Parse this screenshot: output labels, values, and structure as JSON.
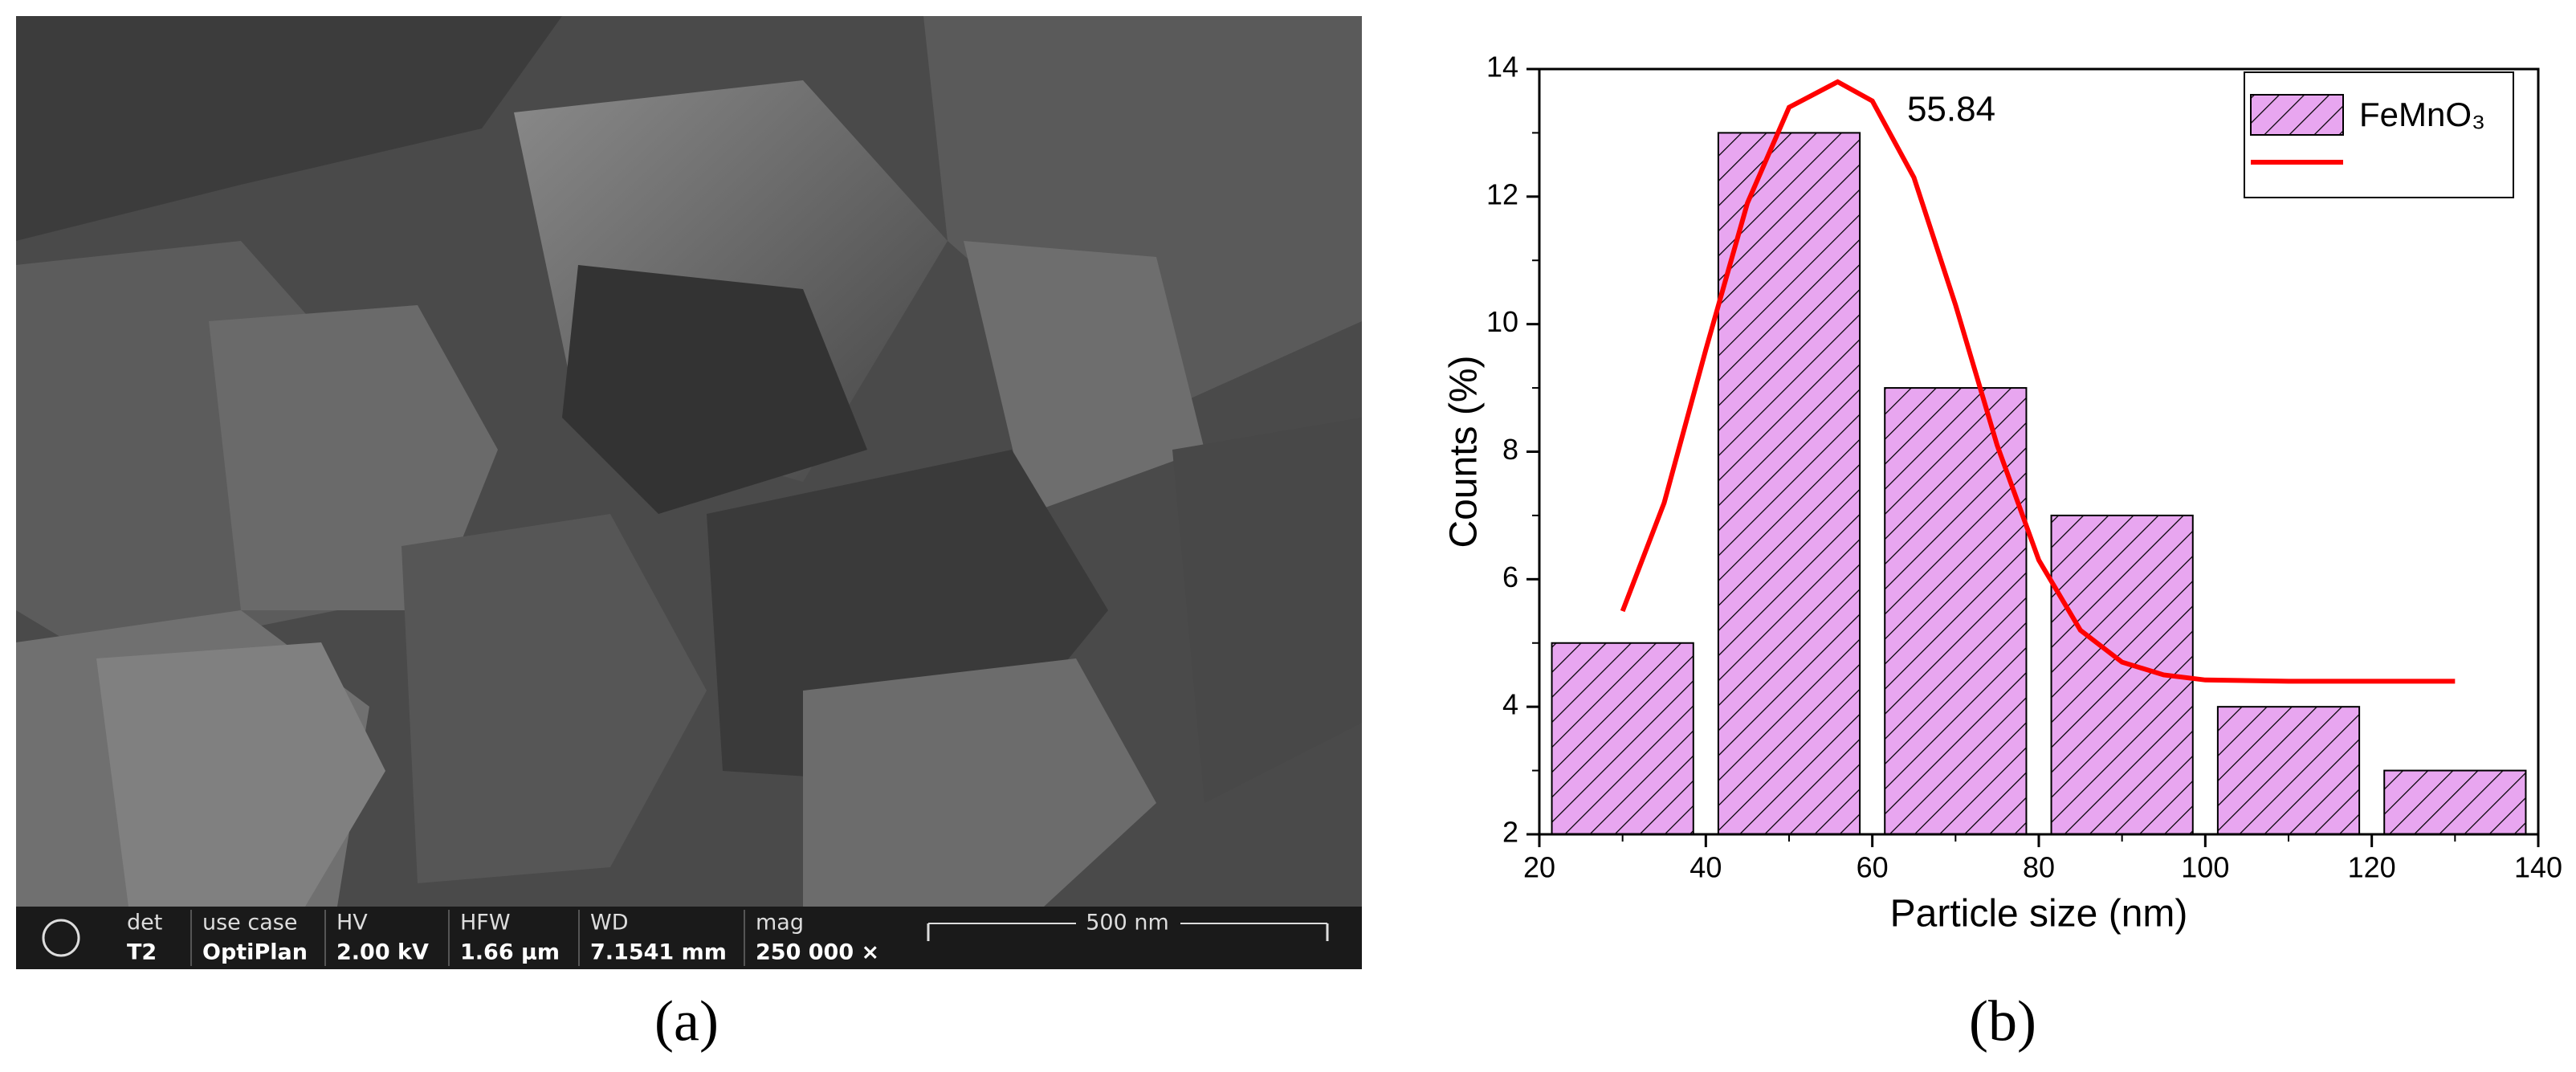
{
  "sem_image": {
    "info_bar": [
      {
        "label": "det",
        "value": "T2"
      },
      {
        "label": "use case",
        "value": "OptiPlan"
      },
      {
        "label": "HV",
        "value": "2.00 kV"
      },
      {
        "label": "HFW",
        "value": "1.66 µm"
      },
      {
        "label": "WD",
        "value": "7.1541 mm"
      },
      {
        "label": "mag",
        "value": "250 000 ×"
      }
    ],
    "scale_bar": "500 nm"
  },
  "labels": {
    "a": "(a)",
    "b": "(b)"
  },
  "chart_data": {
    "type": "histogram",
    "x_label": "Particle size (nm)",
    "y_label": "Counts (%)",
    "name": "FeMnO₃",
    "color": "#e8a6f0",
    "bins": [
      20,
      40,
      60,
      80,
      100,
      120,
      140
    ],
    "values": [
      5,
      13,
      9,
      7,
      4,
      3
    ],
    "fit": {
      "color": "#ff0000",
      "x": [
        30,
        35,
        40,
        45,
        50,
        55.84,
        60,
        65,
        70,
        75,
        80,
        85,
        90,
        95,
        100,
        110,
        120,
        130
      ],
      "y": [
        5.5,
        7.2,
        9.6,
        11.9,
        13.4,
        13.8,
        13.5,
        12.3,
        10.3,
        8.1,
        6.3,
        5.2,
        4.7,
        4.5,
        4.42,
        4.4,
        4.4,
        4.4
      ]
    },
    "peak_label": "55.84",
    "xlim": [
      20,
      140
    ],
    "xticks": [
      20,
      40,
      60,
      80,
      100,
      120,
      140
    ],
    "ylim": [
      2,
      14
    ],
    "yticks": [
      2,
      4,
      6,
      8,
      10,
      12,
      14
    ],
    "legend": "top right"
  }
}
